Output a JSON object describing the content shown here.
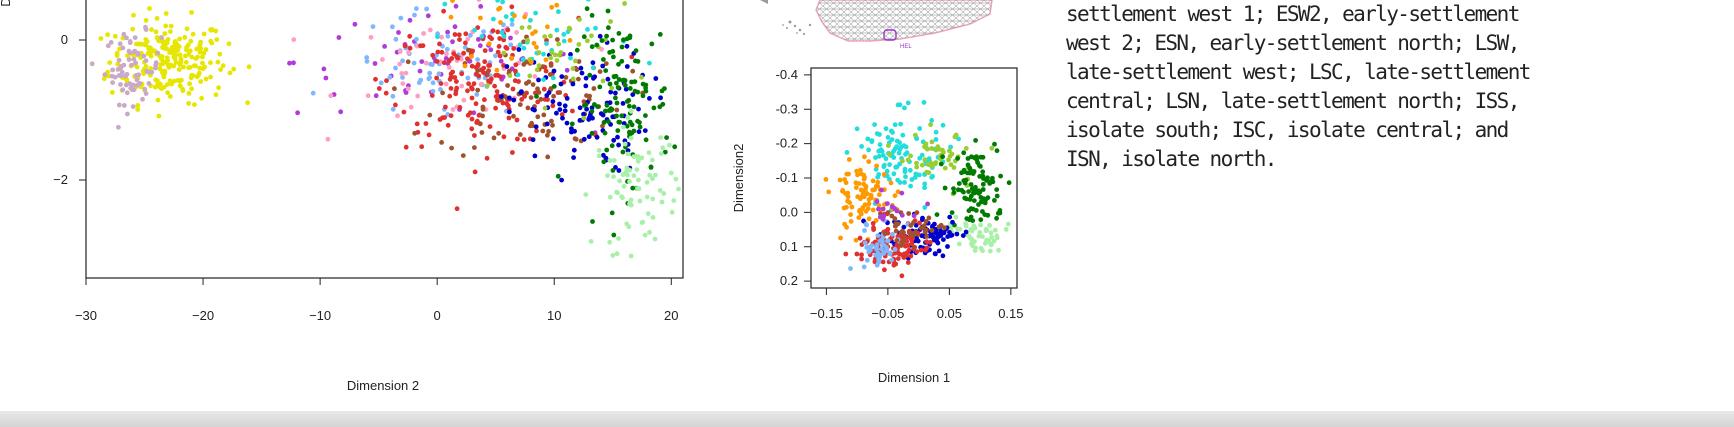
{
  "chart_data": [
    {
      "type": "scatter",
      "xlabel": "Dimension 2",
      "ylabel": "D",
      "xlim": [
        -30,
        21
      ],
      "ylim": [
        -3.4,
        0.6
      ],
      "x_ticks": [
        "−30",
        "−20",
        "−10",
        "0",
        "10",
        "20"
      ],
      "x_tick_values": [
        -30,
        -20,
        -10,
        0,
        10,
        20
      ],
      "y_ticks": [
        "0",
        "−2"
      ],
      "y_tick_values": [
        0,
        -2
      ],
      "y_axis_inverted": false,
      "grid": false,
      "legend": "none",
      "series": [
        {
          "color": "#e6e600",
          "cx": -23,
          "cy": -0.3,
          "sx": 2.5,
          "sy": 0.3,
          "n": 230
        },
        {
          "color": "#c9a8c8",
          "cx": -26,
          "cy": -0.4,
          "sx": 1.2,
          "sy": 0.25,
          "n": 70
        },
        {
          "color": "#b03adb",
          "cx": 0,
          "cy": -0.3,
          "sx": 6,
          "sy": 0.4,
          "n": 60
        },
        {
          "color": "#7fb7ff",
          "cx": 0,
          "cy": -0.4,
          "sx": 4,
          "sy": 0.4,
          "n": 70
        },
        {
          "color": "#ff9ec1",
          "cx": 2,
          "cy": -0.4,
          "sx": 5,
          "sy": 0.4,
          "n": 50
        },
        {
          "color": "#e03030",
          "cx": 4,
          "cy": -0.6,
          "sx": 4,
          "sy": 0.45,
          "n": 180
        },
        {
          "color": "#a0522d",
          "cx": 8,
          "cy": -0.8,
          "sx": 4,
          "sy": 0.45,
          "n": 90
        },
        {
          "color": "#0000cc",
          "cx": 12,
          "cy": -1.0,
          "sx": 3,
          "sy": 0.45,
          "n": 110
        },
        {
          "color": "#22dddd",
          "cx": 9,
          "cy": 0.0,
          "sx": 4,
          "sy": 0.35,
          "n": 40
        },
        {
          "color": "#9acd32",
          "cx": 11,
          "cy": -0.2,
          "sx": 3,
          "sy": 0.35,
          "n": 40
        },
        {
          "color": "#ff9900",
          "cx": 7,
          "cy": 0.2,
          "sx": 3,
          "sy": 0.3,
          "n": 25
        },
        {
          "color": "#007a00",
          "cx": 16,
          "cy": -0.9,
          "sx": 2,
          "sy": 0.6,
          "n": 120
        },
        {
          "color": "#a8f0a8",
          "cx": 17,
          "cy": -2.1,
          "sx": 1.8,
          "sy": 0.45,
          "n": 80
        }
      ]
    },
    {
      "type": "scatter",
      "xlabel": "Dimension 1",
      "ylabel": "Dimension2",
      "xlim": [
        -0.175,
        0.16
      ],
      "ylim": [
        0.22,
        -0.42
      ],
      "x_ticks": [
        "−0.15",
        "−0.05",
        "0.05",
        "0.15"
      ],
      "x_tick_values": [
        -0.15,
        -0.05,
        0.05,
        0.15
      ],
      "y_ticks": [
        "-0.4",
        "-0.3",
        "-0.2",
        "-0.1",
        "0.0",
        "0.1",
        "0.2"
      ],
      "y_tick_values": [
        -0.4,
        -0.3,
        -0.2,
        -0.1,
        0.0,
        0.1,
        0.2
      ],
      "y_axis_inverted": true,
      "grid": false,
      "legend": "none",
      "series": [
        {
          "color": "#22dddd",
          "cx": -0.03,
          "cy": -0.17,
          "sx": 0.035,
          "sy": 0.06,
          "n": 110
        },
        {
          "color": "#9acd32",
          "cx": 0.03,
          "cy": -0.17,
          "sx": 0.03,
          "sy": 0.04,
          "n": 50
        },
        {
          "color": "#ff9900",
          "cx": -0.09,
          "cy": -0.05,
          "sx": 0.025,
          "sy": 0.05,
          "n": 90
        },
        {
          "color": "#007a00",
          "cx": 0.09,
          "cy": -0.07,
          "sx": 0.02,
          "sy": 0.06,
          "n": 100
        },
        {
          "color": "#a8f0a8",
          "cx": 0.09,
          "cy": 0.06,
          "sx": 0.02,
          "sy": 0.025,
          "n": 50
        },
        {
          "color": "#0000cc",
          "cx": 0.01,
          "cy": 0.07,
          "sx": 0.03,
          "sy": 0.03,
          "n": 90
        },
        {
          "color": "#e03030",
          "cx": -0.04,
          "cy": 0.1,
          "sx": 0.03,
          "sy": 0.04,
          "n": 100
        },
        {
          "color": "#7fb7ff",
          "cx": -0.06,
          "cy": 0.1,
          "sx": 0.015,
          "sy": 0.03,
          "n": 50
        },
        {
          "color": "#a0522d",
          "cx": -0.01,
          "cy": 0.05,
          "sx": 0.03,
          "sy": 0.03,
          "n": 40
        },
        {
          "color": "#b03adb",
          "cx": -0.04,
          "cy": 0.0,
          "sx": 0.02,
          "sy": 0.03,
          "n": 15
        }
      ]
    }
  ],
  "map": {
    "label": "HEL",
    "fill_color": "#ffffff",
    "border_color": "#f0a8b8",
    "grid_color": "#888888",
    "marker_color": "#9933cc"
  },
  "caption": {
    "lines": [
      "settlement west 1; ESW2, early-settlement",
      "west 2; ESN, early-settlement north; LSW,",
      "late-settlement west; LSC, late-settlement",
      "central; LSN, late-settlement north; ISS,",
      "isolate south; ISC, isolate central; and",
      "ISN, isolate north."
    ]
  }
}
